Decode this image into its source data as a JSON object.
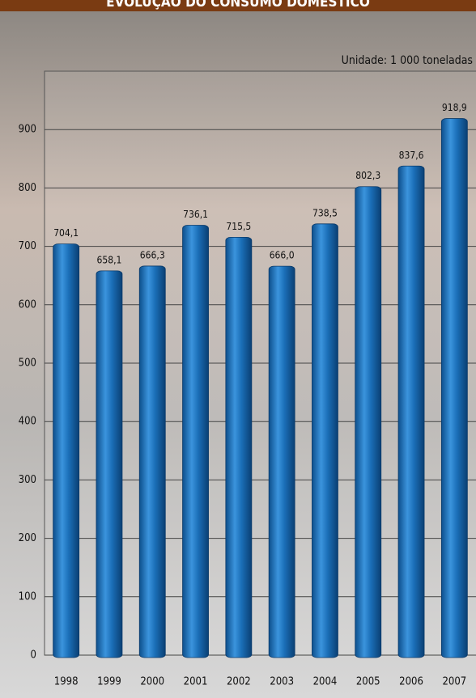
{
  "chart_data": {
    "type": "bar",
    "title": "EVOLUÇÃO DO CONSUMO DOMÉSTICO",
    "subtitle": "Unidade: 1 000 toneladas",
    "categories": [
      "1998",
      "1999",
      "2000",
      "2001",
      "2002",
      "2003",
      "2004",
      "2005",
      "2006",
      "2007"
    ],
    "values": [
      704.1,
      658.1,
      666.3,
      736.1,
      715.5,
      666.0,
      738.5,
      802.3,
      837.6,
      918.9
    ],
    "value_labels": [
      "704,1",
      "658,1",
      "666,3",
      "736,1",
      "715,5",
      "666,0",
      "738,5",
      "802,3",
      "837,6",
      "918,9"
    ],
    "color": "#1b6fb8",
    "ylim": [
      0,
      1000
    ],
    "yticks": [
      0,
      100,
      200,
      300,
      400,
      500,
      600,
      700,
      800,
      900
    ],
    "grid": true
  }
}
